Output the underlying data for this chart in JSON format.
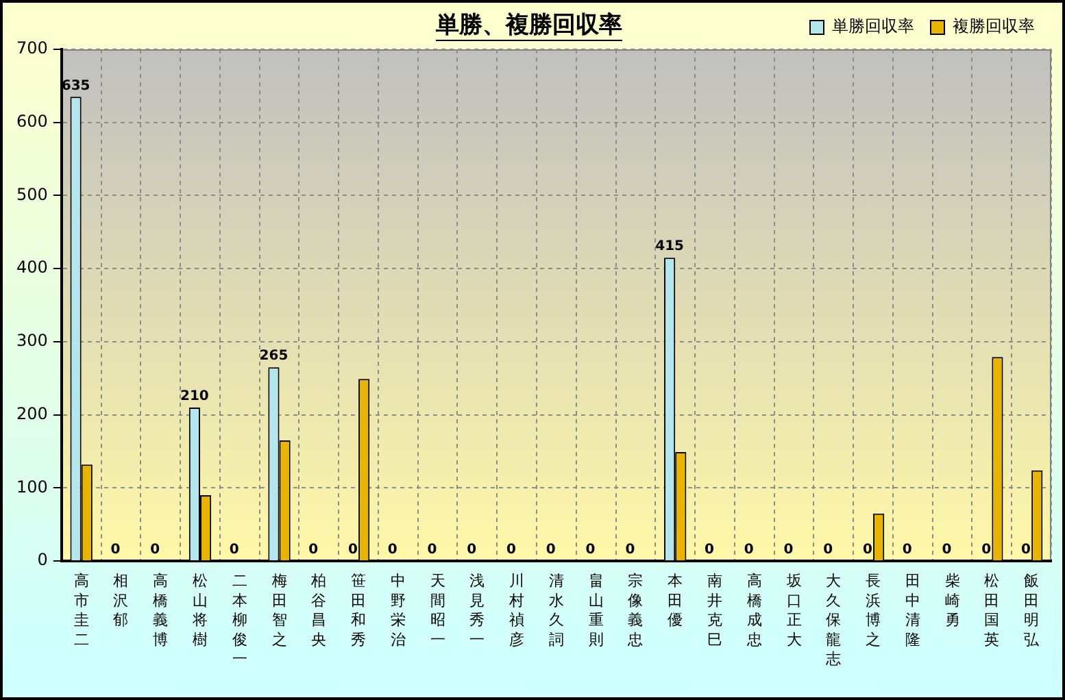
{
  "chart_data": {
    "type": "bar",
    "title": "単勝、複勝回収率",
    "categories": [
      "高市圭二",
      "相沢郁",
      "高橋義博",
      "松山将樹",
      "二本柳俊一",
      "梅田智之",
      "柏谷昌央",
      "笹田和秀",
      "中野栄治",
      "天間昭一",
      "浅見秀一",
      "川村禎彦",
      "清水久詞",
      "畠山重則",
      "宗像義忠",
      "本田優",
      "南井克巳",
      "高橋成忠",
      "坂口正大",
      "大久保龍志",
      "長浜博之",
      "田中清隆",
      "柴崎勇",
      "松田国英",
      "飯田明弘"
    ],
    "series": [
      {
        "name": "単勝回収率",
        "color": "#b4e6ee",
        "values": [
          635,
          0,
          0,
          210,
          0,
          265,
          0,
          0,
          0,
          0,
          0,
          0,
          0,
          0,
          0,
          415,
          0,
          0,
          0,
          0,
          0,
          0,
          0,
          0,
          0
        ],
        "value_labels": [
          "635",
          "0",
          "0",
          "210",
          "0",
          "265",
          "0",
          "0",
          "0",
          "0",
          "0",
          "0",
          "0",
          "0",
          "0",
          "415",
          "0",
          "0",
          "0",
          "0",
          "0",
          "0",
          "0",
          "0",
          "0"
        ]
      },
      {
        "name": "複勝回収率",
        "color": "#e8b400",
        "values": [
          132,
          0,
          0,
          90,
          0,
          165,
          0,
          249,
          0,
          0,
          0,
          0,
          0,
          0,
          0,
          149,
          0,
          0,
          0,
          0,
          65,
          0,
          0,
          279,
          124
        ]
      }
    ],
    "ylim": [
      0,
      700
    ],
    "yticks": [
      0,
      100,
      200,
      300,
      400,
      500,
      600,
      700
    ],
    "grid": true,
    "legend": "top right"
  }
}
